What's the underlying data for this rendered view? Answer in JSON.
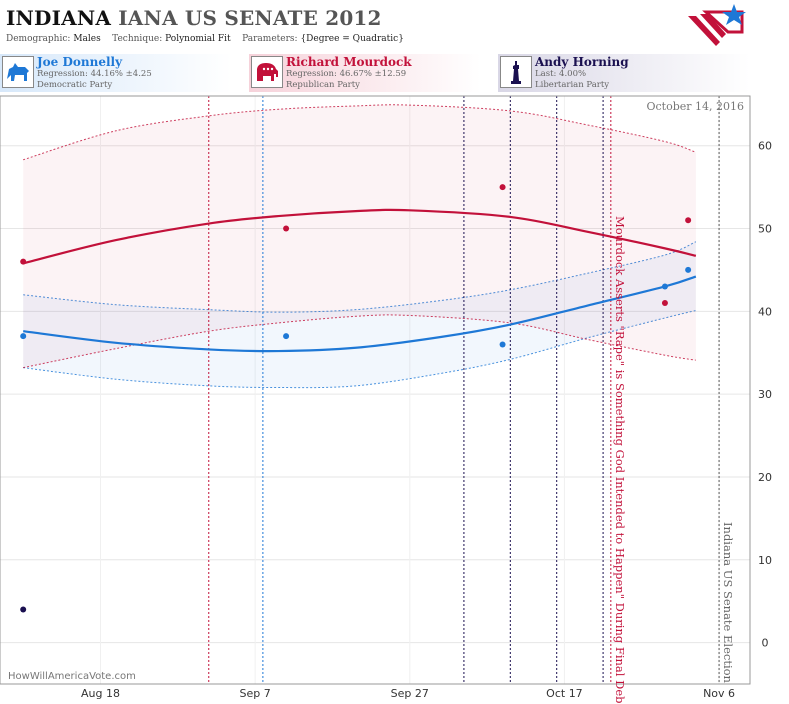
{
  "header": {
    "state": "INDIANA",
    "race": "IANA US SENATE 2012",
    "demographic_label": "Demographic:",
    "demographic_value": "Males",
    "technique_label": "Technique:",
    "technique_value": "Polynomial Fit",
    "parameters_label": "Parameters:",
    "parameters_value": "{Degree = Quadratic}"
  },
  "candidates": [
    {
      "name": "Joe Donnelly",
      "line1": "Regression: 44.16% ±4.25",
      "line2": "Democratic Party",
      "color": "#1e78d6",
      "icon": "donkey-icon"
    },
    {
      "name": "Richard Mourdock",
      "line1": "Regression: 46.67% ±12.59",
      "line2": "Republican Party",
      "color": "#c2113a",
      "icon": "elephant-icon"
    },
    {
      "name": "Andy Horning",
      "line1": "Last: 4.00%",
      "line2": "Libertarian Party",
      "color": "#1a1050",
      "icon": "liberty-statue-icon"
    }
  ],
  "date_label": "October 14, 2016",
  "watermark": "HowWillAmericaVote.com",
  "annotations": {
    "debate": "Mourdock Asserts \"Rape\" is Something God Intended to Happen\" During Final Debate",
    "election": "Indiana US Senate Election"
  },
  "chart_data": {
    "type": "scatter",
    "x_ticks": [
      "Aug 18",
      "Sep 7",
      "Sep 27",
      "Oct 17",
      "Nov 6"
    ],
    "y_ticks": [
      0,
      10,
      20,
      30,
      40,
      50,
      60
    ],
    "xlim": [
      "2012-08-05",
      "2012-11-10"
    ],
    "ylim": [
      -5,
      66
    ],
    "series": [
      {
        "name": "Joe Donnelly",
        "color": "#1e78d6",
        "points": [
          [
            "2012-08-08",
            37
          ],
          [
            "2012-09-11",
            37
          ],
          [
            "2012-10-09",
            36
          ],
          [
            "2012-10-30",
            43
          ],
          [
            "2012-11-02",
            45
          ]
        ],
        "fit": [
          [
            "2012-08-08",
            37.6
          ],
          [
            "2012-08-20",
            36.2
          ],
          [
            "2012-09-01",
            35.4
          ],
          [
            "2012-09-10",
            35.2
          ],
          [
            "2012-09-20",
            35.6
          ],
          [
            "2012-10-01",
            36.9
          ],
          [
            "2012-10-10",
            38.4
          ],
          [
            "2012-10-20",
            40.7
          ],
          [
            "2012-10-30",
            43.0
          ],
          [
            "2012-11-03",
            44.2
          ]
        ],
        "upper": [
          [
            "2012-08-08",
            42.0
          ],
          [
            "2012-08-20",
            40.8
          ],
          [
            "2012-09-01",
            40.2
          ],
          [
            "2012-09-10",
            39.9
          ],
          [
            "2012-09-20",
            40.2
          ],
          [
            "2012-10-01",
            41.3
          ],
          [
            "2012-10-10",
            42.6
          ],
          [
            "2012-10-20",
            44.6
          ],
          [
            "2012-10-30",
            46.8
          ],
          [
            "2012-11-03",
            48.4
          ]
        ],
        "lower": [
          [
            "2012-08-08",
            33.2
          ],
          [
            "2012-08-20",
            31.8
          ],
          [
            "2012-09-01",
            31.0
          ],
          [
            "2012-09-10",
            30.8
          ],
          [
            "2012-09-20",
            31.0
          ],
          [
            "2012-10-01",
            32.5
          ],
          [
            "2012-10-10",
            34.2
          ],
          [
            "2012-10-20",
            36.8
          ],
          [
            "2012-10-30",
            39.2
          ],
          [
            "2012-11-03",
            40.1
          ]
        ]
      },
      {
        "name": "Richard Mourdock",
        "color": "#c2113a",
        "points": [
          [
            "2012-08-08",
            46
          ],
          [
            "2012-09-11",
            50
          ],
          [
            "2012-10-09",
            55
          ],
          [
            "2012-10-30",
            41
          ],
          [
            "2012-11-02",
            51
          ]
        ],
        "fit": [
          [
            "2012-08-08",
            45.8
          ],
          [
            "2012-08-20",
            48.6
          ],
          [
            "2012-09-01",
            50.6
          ],
          [
            "2012-09-10",
            51.5
          ],
          [
            "2012-09-20",
            52.1
          ],
          [
            "2012-09-27",
            52.2
          ],
          [
            "2012-10-10",
            51.4
          ],
          [
            "2012-10-20",
            49.6
          ],
          [
            "2012-10-30",
            47.6
          ],
          [
            "2012-11-03",
            46.7
          ]
        ],
        "upper": [
          [
            "2012-08-08",
            58.3
          ],
          [
            "2012-08-20",
            61.8
          ],
          [
            "2012-09-01",
            63.6
          ],
          [
            "2012-09-10",
            64.4
          ],
          [
            "2012-09-20",
            64.8
          ],
          [
            "2012-09-27",
            64.9
          ],
          [
            "2012-10-10",
            64.2
          ],
          [
            "2012-10-20",
            62.5
          ],
          [
            "2012-10-30",
            60.5
          ],
          [
            "2012-11-03",
            59.2
          ]
        ],
        "lower": [
          [
            "2012-08-08",
            33.2
          ],
          [
            "2012-08-20",
            35.5
          ],
          [
            "2012-09-01",
            37.6
          ],
          [
            "2012-09-10",
            38.6
          ],
          [
            "2012-09-20",
            39.4
          ],
          [
            "2012-09-27",
            39.5
          ],
          [
            "2012-10-10",
            38.6
          ],
          [
            "2012-10-20",
            36.6
          ],
          [
            "2012-10-30",
            34.7
          ],
          [
            "2012-11-03",
            34.1
          ]
        ]
      },
      {
        "name": "Andy Horning",
        "color": "#1a1050",
        "points": [
          [
            "2012-08-08",
            4
          ]
        ]
      }
    ],
    "vlines": [
      {
        "date": "2012-09-01",
        "color": "#c2113a"
      },
      {
        "date": "2012-09-08",
        "color": "#1e78d6"
      },
      {
        "date": "2012-10-04",
        "color": "#1a1050"
      },
      {
        "date": "2012-10-10",
        "color": "#1a1050"
      },
      {
        "date": "2012-10-16",
        "color": "#1a1050"
      },
      {
        "date": "2012-10-22",
        "color": "#1a1050"
      },
      {
        "date": "2012-10-23",
        "color": "#c2113a"
      },
      {
        "date": "2012-11-06",
        "color": "#555555"
      }
    ]
  }
}
